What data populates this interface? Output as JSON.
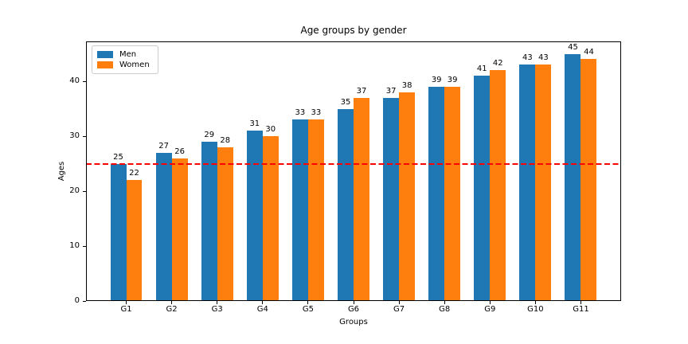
{
  "chart_data": {
    "type": "bar",
    "title": "Age groups by gender",
    "xlabel": "Groups",
    "ylabel": "Ages",
    "categories": [
      "G1",
      "G2",
      "G3",
      "G4",
      "G5",
      "G6",
      "G7",
      "G8",
      "G9",
      "G10",
      "G11"
    ],
    "series": [
      {
        "name": "Men",
        "color": "#1f77b4",
        "values": [
          25,
          27,
          29,
          31,
          33,
          35,
          37,
          39,
          41,
          43,
          45
        ]
      },
      {
        "name": "Women",
        "color": "#ff7f0e",
        "values": [
          22,
          26,
          28,
          30,
          33,
          37,
          38,
          39,
          42,
          43,
          44
        ]
      }
    ],
    "yticks": [
      0,
      10,
      20,
      30,
      40
    ],
    "ylim": [
      0,
      47.25
    ],
    "bar_width": 0.35,
    "grid": false,
    "legend_position": "upper-left",
    "value_labels": true,
    "reference_line": {
      "y": 25,
      "color": "#ff0000",
      "style": "dashed"
    }
  }
}
